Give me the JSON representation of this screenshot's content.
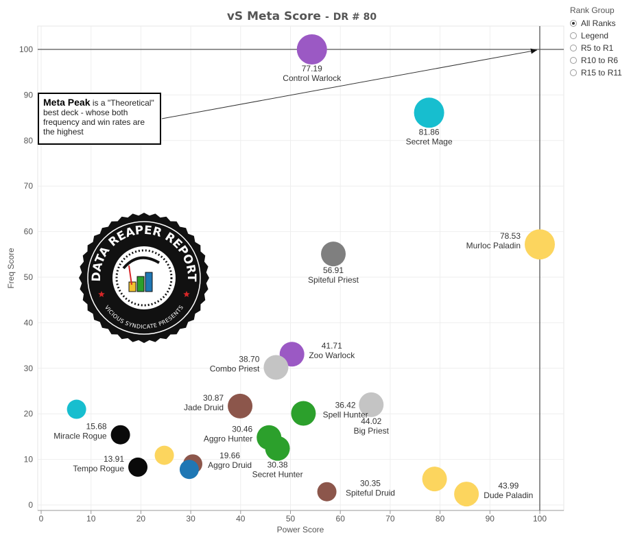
{
  "title": "vS Meta Score",
  "subtitle": "DR # 80",
  "legend_panel": {
    "title": "Rank Group",
    "options": [
      "All Ranks",
      "Legend",
      "R5 to R1",
      "R10 to R6",
      "R15 to R11"
    ],
    "selected": "All Ranks"
  },
  "annotation": {
    "bold": "Meta Peak",
    "text": " is a \"Theoretical\" best deck - whose both frequency and win rates are the highest"
  },
  "logo": {
    "top_text": "DATA REAPER REPORT",
    "bottom_text": "VICIOUS SYNDICATE PRESENTS"
  },
  "colors": {
    "purple": "#9b59c4",
    "cyan": "#17becf",
    "yellow": "#fcd55e",
    "gray": "#7f7f7f",
    "lightgray": "#c4c4c4",
    "brown": "#8c564b",
    "green": "#2ca02c",
    "black": "#0a0a0a",
    "blue": "#1f77b4",
    "grid": "#eeeeee",
    "axis": "#999999",
    "refline": "#555555"
  },
  "chart_data": {
    "type": "scatter",
    "title": "vS Meta Score",
    "subtitle": "DR # 80",
    "xlabel": "Power Score",
    "ylabel": "Freq Score",
    "xlim": [
      -2,
      105
    ],
    "ylim": [
      -1,
      105
    ],
    "x_ticks": [
      0,
      10,
      20,
      30,
      40,
      50,
      60,
      70,
      80,
      90,
      100
    ],
    "y_ticks": [
      0,
      10,
      20,
      30,
      40,
      50,
      60,
      70,
      80,
      90,
      100
    ],
    "grid": true,
    "reference_lines": {
      "x": 100,
      "y": 100
    },
    "points": [
      {
        "name": "Control Warlock",
        "score": "77.19",
        "x": 54.3,
        "y": 100,
        "color": "purple",
        "size": "large",
        "label_pos": "below"
      },
      {
        "name": "Secret Mage",
        "score": "81.86",
        "x": 77.8,
        "y": 86.1,
        "color": "cyan",
        "size": "large",
        "label_pos": "below"
      },
      {
        "name": "Murloc Paladin",
        "score": "78.53",
        "x": 100,
        "y": 57.2,
        "color": "yellow",
        "size": "large",
        "label_pos": "left"
      },
      {
        "name": "Spiteful Priest",
        "score": "56.91",
        "x": 58.6,
        "y": 55.1,
        "color": "gray",
        "size": "medium",
        "label_pos": "below"
      },
      {
        "name": "Zoo Warlock",
        "score": "41.71",
        "x": 50.3,
        "y": 33.1,
        "color": "purple",
        "size": "medium",
        "label_pos": "right"
      },
      {
        "name": "Combo Priest",
        "score": "38.70",
        "x": 47.1,
        "y": 30.2,
        "color": "lightgray",
        "size": "medium",
        "label_pos": "left"
      },
      {
        "name": "Jade Druid",
        "score": "30.87",
        "x": 39.9,
        "y": 21.7,
        "color": "brown",
        "size": "medium",
        "label_pos": "left"
      },
      {
        "name": "Big Priest",
        "score": "44.02",
        "x": 66.2,
        "y": 22.0,
        "color": "lightgray",
        "size": "medium",
        "label_pos": "below"
      },
      {
        "name": "Spell Hunter",
        "score": "36.42",
        "x": 52.6,
        "y": 20.1,
        "color": "green",
        "size": "medium",
        "label_pos": "right"
      },
      {
        "name": "Aggro Hunter",
        "score": "30.46",
        "x": 45.7,
        "y": 14.8,
        "color": "green",
        "size": "medium",
        "label_pos": "left"
      },
      {
        "name": "Secret Hunter",
        "score": "30.38",
        "x": 47.4,
        "y": 12.4,
        "color": "green",
        "size": "medium",
        "label_pos": "below"
      },
      {
        "name": "Miracle Rogue",
        "score": "15.68",
        "x": 15.9,
        "y": 15.4,
        "color": "black",
        "size": "small",
        "label_pos": "left"
      },
      {
        "name": "Tempo Rogue",
        "score": "13.91",
        "x": 19.4,
        "y": 8.3,
        "color": "black",
        "size": "small",
        "label_pos": "left"
      },
      {
        "name": "Aggro Druid",
        "score": "19.66",
        "x": 30.4,
        "y": 9.0,
        "color": "brown",
        "size": "small",
        "label_pos": "right"
      },
      {
        "name": "Spiteful Druid",
        "score": "30.35",
        "x": 57.3,
        "y": 2.9,
        "color": "brown",
        "size": "small",
        "label_pos": "right"
      },
      {
        "name": "Dude Paladin",
        "score": "43.99",
        "x": 85.3,
        "y": 2.4,
        "color": "yellow",
        "size": "medium",
        "label_pos": "right"
      },
      {
        "name": "",
        "score": "",
        "x": 7.1,
        "y": 21.0,
        "color": "cyan",
        "size": "small",
        "label_pos": "none"
      },
      {
        "name": "",
        "score": "",
        "x": 24.7,
        "y": 10.9,
        "color": "yellow",
        "size": "small",
        "label_pos": "none"
      },
      {
        "name": "",
        "score": "",
        "x": 29.7,
        "y": 7.8,
        "color": "blue",
        "size": "small",
        "label_pos": "none"
      },
      {
        "name": "",
        "score": "",
        "x": 78.9,
        "y": 5.7,
        "color": "yellow",
        "size": "medium",
        "label_pos": "none"
      }
    ]
  }
}
